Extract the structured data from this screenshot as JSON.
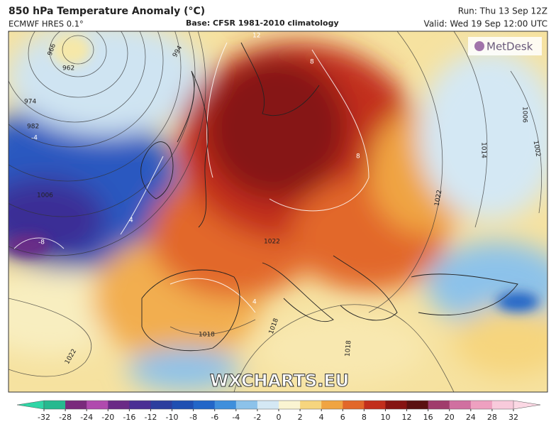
{
  "header": {
    "title": "850 hPa Temperature Anomaly (°C)",
    "model": "ECMWF HRES 0.1°",
    "base": "Base: CFSR 1981-2010 climatology",
    "run": "Run: Thu 13 Sep 12Z",
    "valid": "Valid: Wed 19 Sep 12:00 UTC"
  },
  "logo": "MetDesk",
  "watermark": "WXCHARTS.EU",
  "isobar_labels": [
    "966",
    "962",
    "974",
    "982",
    "994",
    "1006",
    "1014",
    "1006",
    "1002",
    "1022",
    "1022",
    "1018",
    "1018",
    "1018",
    "1022"
  ],
  "anomaly_labels": [
    "-4",
    "-8",
    "4",
    "8",
    "8",
    "12",
    "4"
  ],
  "colorbar": {
    "ticks": [
      -32,
      -28,
      -24,
      -20,
      -16,
      -12,
      -10,
      -8,
      -6,
      -4,
      -2,
      0,
      2,
      4,
      6,
      8,
      10,
      12,
      16,
      20,
      24,
      28,
      32
    ],
    "colors": [
      "#27b98f",
      "#7a2a7c",
      "#b04aae",
      "#6a2a86",
      "#4a2e94",
      "#2c3e9e",
      "#1f4fb2",
      "#2266c8",
      "#3f8fdc",
      "#8cc2ea",
      "#d4e8f4",
      "#faf4d2",
      "#f6d57e",
      "#f0a442",
      "#e2672a",
      "#c22e1c",
      "#861412",
      "#5a1010",
      "#a03c6c",
      "#d070a0",
      "#eea0c0",
      "#f8cadb"
    ],
    "low_color": "#2fd6a6",
    "high_color": "#fbd8e4"
  }
}
